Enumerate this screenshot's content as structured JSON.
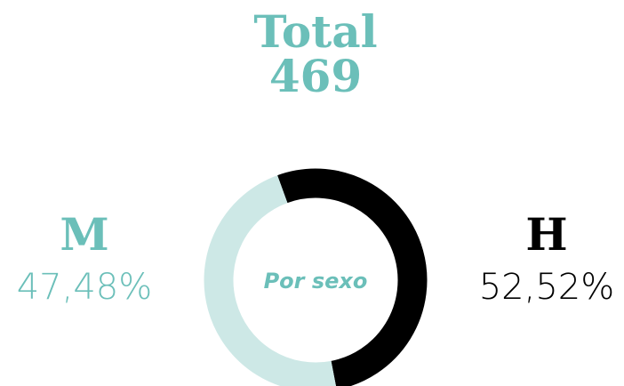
{
  "chart_data": {
    "type": "pie",
    "title": "Total",
    "total": 469,
    "center_label": "Por sexo",
    "categories": [
      "M",
      "H"
    ],
    "values": [
      47.48,
      52.52
    ],
    "value_labels": [
      "47,48%",
      "52,52%"
    ],
    "colors": [
      "#cde8e6",
      "#000000"
    ],
    "label_colors": [
      "#6bbfb9",
      "#000000"
    ],
    "title_color": "#6bbfb9"
  }
}
